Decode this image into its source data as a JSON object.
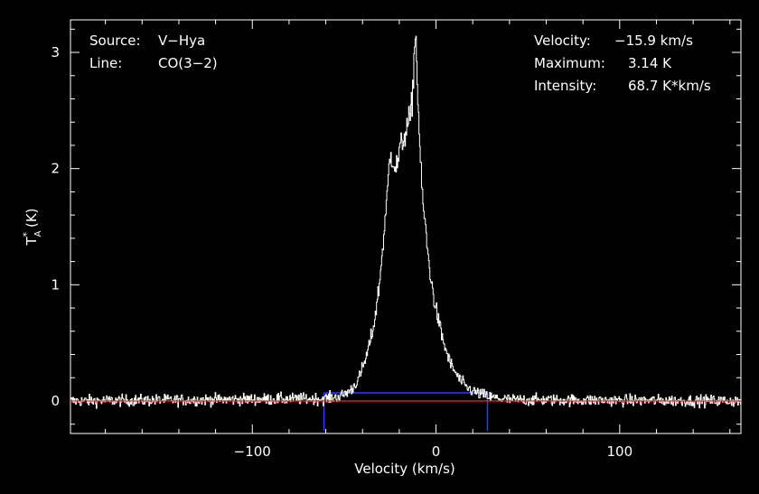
{
  "chart_data": {
    "type": "line",
    "title": "",
    "xlabel": "Velocity (km/s)",
    "ylabel_main": "T",
    "ylabel_sup": "*",
    "ylabel_sub": "A",
    "ylabel_unit": "(K)",
    "xlim": [
      -199,
      166
    ],
    "ylim": [
      -0.28,
      3.28
    ],
    "x_ticks": [
      -100,
      0,
      100
    ],
    "x_tick_labels": [
      "−100",
      "0",
      "100"
    ],
    "y_ticks": [
      0,
      1,
      2,
      3
    ],
    "y_tick_labels": [
      "0",
      "1",
      "2",
      "3"
    ],
    "x_minor_step": 20,
    "y_minor_step": 0.2,
    "grid": false,
    "colors": {
      "background": "#000000",
      "spectrum": "#ffffff",
      "baseline": "#ff2020",
      "window": "#2a3cff"
    },
    "spectrum_profile": {
      "x": [
        -199,
        -60,
        -52,
        -46,
        -42,
        -38,
        -34,
        -31,
        -29,
        -27,
        -26,
        -25.5,
        -25,
        -24,
        -23,
        -22,
        -21,
        -20,
        -18,
        -16,
        -14,
        -13,
        -12.5,
        -12,
        -11.5,
        -11,
        -10.5,
        -10,
        -9.5,
        -9,
        -8,
        -6,
        -4,
        -2,
        0,
        2,
        4,
        6,
        8,
        12,
        16,
        22,
        30,
        40,
        166
      ],
      "y": [
        0,
        0.02,
        0.04,
        0.1,
        0.2,
        0.38,
        0.65,
        1.0,
        1.35,
        1.7,
        1.95,
        2.05,
        2.12,
        2.1,
        2.05,
        2.0,
        2.05,
        2.15,
        2.25,
        2.35,
        2.45,
        2.6,
        2.8,
        3.0,
        3.14,
        3.1,
        2.85,
        2.6,
        2.4,
        2.2,
        1.85,
        1.5,
        1.18,
        0.95,
        0.78,
        0.63,
        0.5,
        0.4,
        0.31,
        0.2,
        0.12,
        0.07,
        0.03,
        0.01,
        0
      ]
    },
    "noise_rms": 0.025,
    "baseline_y": 0,
    "window": {
      "x_start": -61,
      "x_end": 28,
      "y_top": 0.07,
      "y_bottom": -0.26
    }
  },
  "info_left": {
    "source_label": "Source:",
    "source_value": "V−Hya",
    "line_label": "Line:",
    "line_value": "CO(3−2)"
  },
  "info_right": {
    "velocity_label": "Velocity:",
    "velocity_value": "−15.9 km/s",
    "maximum_label": "Maximum:",
    "maximum_value": "3.14 K",
    "intensity_label": "Intensity:",
    "intensity_value": "68.7 K*km/s"
  }
}
